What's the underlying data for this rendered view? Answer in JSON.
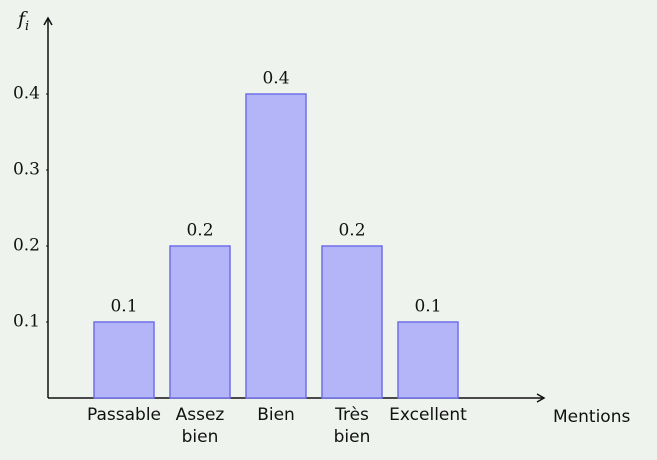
{
  "chart_data": {
    "type": "bar",
    "y_label": "f",
    "y_label_sub": "i",
    "x_label": "Mentions",
    "categories": [
      "Passable",
      "Assez bien",
      "Bien",
      "Très bien",
      "Excellent"
    ],
    "values": [
      0.1,
      0.2,
      0.4,
      0.2,
      0.1
    ],
    "color": "#b4b4f8",
    "edge_color": "#7070e8",
    "ylim": [
      0,
      0.5
    ],
    "yticks": [
      0.1,
      0.2,
      0.3,
      0.4
    ],
    "grid": false
  }
}
